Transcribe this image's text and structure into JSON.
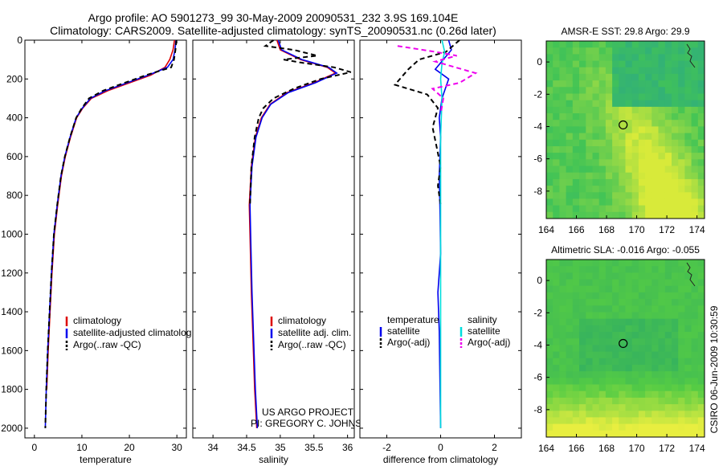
{
  "header": {
    "line1": "Argo profile: AO 5901273_99 30-May-2009 20090531_232 3.9S 169.104E",
    "line2": "Climatology: CARS2009. Satellite-adjusted climatology: synTS_20090531.nc (0.26d later)"
  },
  "side_label": "CSIRO 06-Jun-2009 10:30:59",
  "colors": {
    "climatology": "#dd0000",
    "satellite": "#0000ee",
    "argo": "#000000",
    "sal_satellite": "#00dddd",
    "sal_argo": "#ee00ee"
  },
  "chart_data": [
    {
      "id": "temperature",
      "type": "line",
      "xlabel": "temperature",
      "xlim": [
        -2,
        32
      ],
      "ylim": [
        2050,
        0
      ],
      "xticks": [
        0,
        10,
        20,
        30
      ],
      "yticks": [
        0,
        200,
        400,
        600,
        800,
        1000,
        1200,
        1400,
        1600,
        1800,
        2000
      ],
      "legend": [
        "climatology",
        "satellite-adjusted climatolog",
        "Argo(..raw -QC)"
      ],
      "series": [
        {
          "name": "climatology",
          "color": "#dd0000",
          "dash": "",
          "x": [
            29.5,
            29.2,
            28.5,
            27.5,
            24.5,
            20.0,
            15.5,
            12.0,
            10.2,
            8.9,
            7.6,
            6.5,
            5.7,
            4.9,
            4.2,
            3.7,
            3.3,
            2.9,
            2.6
          ],
          "y": [
            0,
            50,
            100,
            140,
            180,
            220,
            260,
            300,
            350,
            400,
            500,
            600,
            700,
            850,
            1000,
            1200,
            1400,
            1600,
            1800
          ]
        },
        {
          "name": "satellite",
          "color": "#0000ee",
          "dash": "",
          "x": [
            29.8,
            29.6,
            29.2,
            28.0,
            24.0,
            19.5,
            15.0,
            11.8,
            10.1,
            8.8,
            7.5,
            6.4,
            5.6,
            4.8,
            4.1,
            3.6,
            3.2,
            2.8,
            2.5,
            2.3
          ],
          "y": [
            0,
            50,
            100,
            140,
            180,
            220,
            260,
            300,
            350,
            400,
            500,
            600,
            700,
            850,
            1000,
            1200,
            1400,
            1600,
            1800,
            2000
          ]
        },
        {
          "name": "argo",
          "color": "#000000",
          "dash": "6,4",
          "x": [
            29.9,
            29.7,
            29.4,
            28.8,
            23.5,
            19.0,
            14.5,
            11.5,
            10.0,
            8.8,
            7.5,
            6.4,
            5.6,
            4.8,
            4.1,
            3.6,
            3.2,
            2.8,
            2.5,
            2.3
          ],
          "y": [
            0,
            50,
            100,
            140,
            180,
            220,
            260,
            300,
            350,
            400,
            500,
            600,
            700,
            850,
            1000,
            1200,
            1400,
            1600,
            1800,
            2000
          ]
        }
      ]
    },
    {
      "id": "salinity",
      "type": "line",
      "xlabel": "salinity",
      "xlim": [
        33.7,
        36.1
      ],
      "ylim": [
        2050,
        0
      ],
      "xticks": [
        34,
        34.5,
        35,
        35.5,
        36
      ],
      "legend": [
        "climatology",
        "satellite adj. clim.",
        "Argo(..raw -QC)"
      ],
      "footer": [
        "US ARGO PROJECT",
        "PI: GREGORY C. JOHNSON"
      ],
      "series": [
        {
          "name": "climatology",
          "color": "#dd0000",
          "dash": "",
          "x": [
            34.95,
            35.0,
            35.3,
            35.7,
            35.82,
            35.5,
            35.1,
            34.85,
            34.72,
            34.63,
            34.57,
            34.54,
            34.55,
            34.57,
            34.6,
            34.62,
            34.65
          ],
          "y": [
            0,
            50,
            100,
            140,
            170,
            220,
            270,
            330,
            400,
            500,
            650,
            850,
            1000,
            1300,
            1600,
            1800,
            2000
          ]
        },
        {
          "name": "satellite",
          "color": "#0000ee",
          "dash": "",
          "x": [
            34.97,
            35.02,
            35.32,
            35.72,
            35.84,
            35.52,
            35.12,
            34.86,
            34.73,
            34.64,
            34.58,
            34.55,
            34.56,
            34.58,
            34.61,
            34.63,
            34.66
          ],
          "y": [
            0,
            50,
            100,
            140,
            170,
            220,
            270,
            330,
            400,
            500,
            650,
            850,
            1000,
            1300,
            1600,
            1800,
            2000
          ]
        },
        {
          "name": "argo",
          "color": "#000000",
          "dash": "6,4",
          "x": [
            34.9,
            34.78,
            35.2,
            35.55,
            35.05,
            35.3,
            35.8,
            36.05,
            35.6,
            35.2,
            34.9,
            34.75,
            34.68,
            34.62,
            34.57,
            34.55
          ],
          "y": [
            0,
            30,
            50,
            80,
            100,
            115,
            140,
            165,
            200,
            250,
            300,
            350,
            400,
            500,
            650,
            850
          ]
        }
      ]
    },
    {
      "id": "difference",
      "type": "line",
      "xlabel": "difference from climatology",
      "xlim": [
        -3,
        3
      ],
      "ylim": [
        2050,
        0
      ],
      "xticks": [
        -2,
        0,
        2
      ],
      "legend_left_title": "temperature",
      "legend_right_title": "salinity",
      "legend_left": [
        "satellite",
        "Argo(-adj)"
      ],
      "legend_right": [
        "satellite",
        "Argo(-adj)"
      ],
      "series": [
        {
          "name": "temp satellite",
          "color": "#0000ee",
          "dash": "",
          "x": [
            0.3,
            0.4,
            0.1,
            -0.2,
            0.3,
            0.05,
            -0.05,
            0.0,
            -0.05,
            -0.02,
            0.0,
            -0.1,
            -0.05,
            -0.02,
            0.0
          ],
          "y": [
            0,
            50,
            100,
            150,
            200,
            300,
            400,
            500,
            700,
            900,
            1100,
            1300,
            1500,
            1800,
            2000
          ]
        },
        {
          "name": "temp argo",
          "color": "#000000",
          "dash": "6,4",
          "x": [
            0.7,
            0.2,
            -0.8,
            -1.2,
            -1.7,
            -0.5,
            -0.1,
            -0.3,
            -0.15,
            0.0,
            -0.1,
            0.0
          ],
          "y": [
            0,
            60,
            100,
            150,
            230,
            280,
            350,
            450,
            550,
            650,
            750,
            850
          ]
        },
        {
          "name": "sal satellite",
          "color": "#00dddd",
          "dash": "",
          "x": [
            0.05,
            0.15,
            0.05,
            0.0,
            0.05,
            0.0,
            0.0,
            0.0,
            0.0
          ],
          "y": [
            0,
            60,
            120,
            200,
            300,
            500,
            900,
            1500,
            2000
          ]
        },
        {
          "name": "sal argo",
          "color": "#ee00ee",
          "dash": "6,4",
          "x": [
            -1.6,
            -0.2,
            0.6,
            -0.2,
            1.3,
            0.7,
            -0.3,
            0.1,
            0.0
          ],
          "y": [
            30,
            60,
            80,
            110,
            170,
            220,
            250,
            300,
            380
          ]
        }
      ]
    },
    {
      "id": "sst_map",
      "type": "heatmap",
      "title": "AMSR-E SST: 29.8 Argo: 29.9",
      "xlim": [
        164,
        174.5
      ],
      "ylim": [
        -9.7,
        1.3
      ],
      "xticks": [
        164,
        166,
        168,
        170,
        172,
        174
      ],
      "yticks": [
        0,
        -2,
        -4,
        -6,
        -8
      ],
      "marker": {
        "lon": 169.1,
        "lat": -3.9
      }
    },
    {
      "id": "sla_map",
      "type": "heatmap",
      "title": "Altimetric SLA: -0.016 Argo: -0.055",
      "xlim": [
        164,
        174.5
      ],
      "ylim": [
        -9.7,
        1.3
      ],
      "xticks": [
        164,
        166,
        168,
        170,
        172,
        174
      ],
      "yticks": [
        0,
        -2,
        -4,
        -6,
        -8
      ],
      "marker": {
        "lon": 169.1,
        "lat": -3.9
      }
    }
  ]
}
